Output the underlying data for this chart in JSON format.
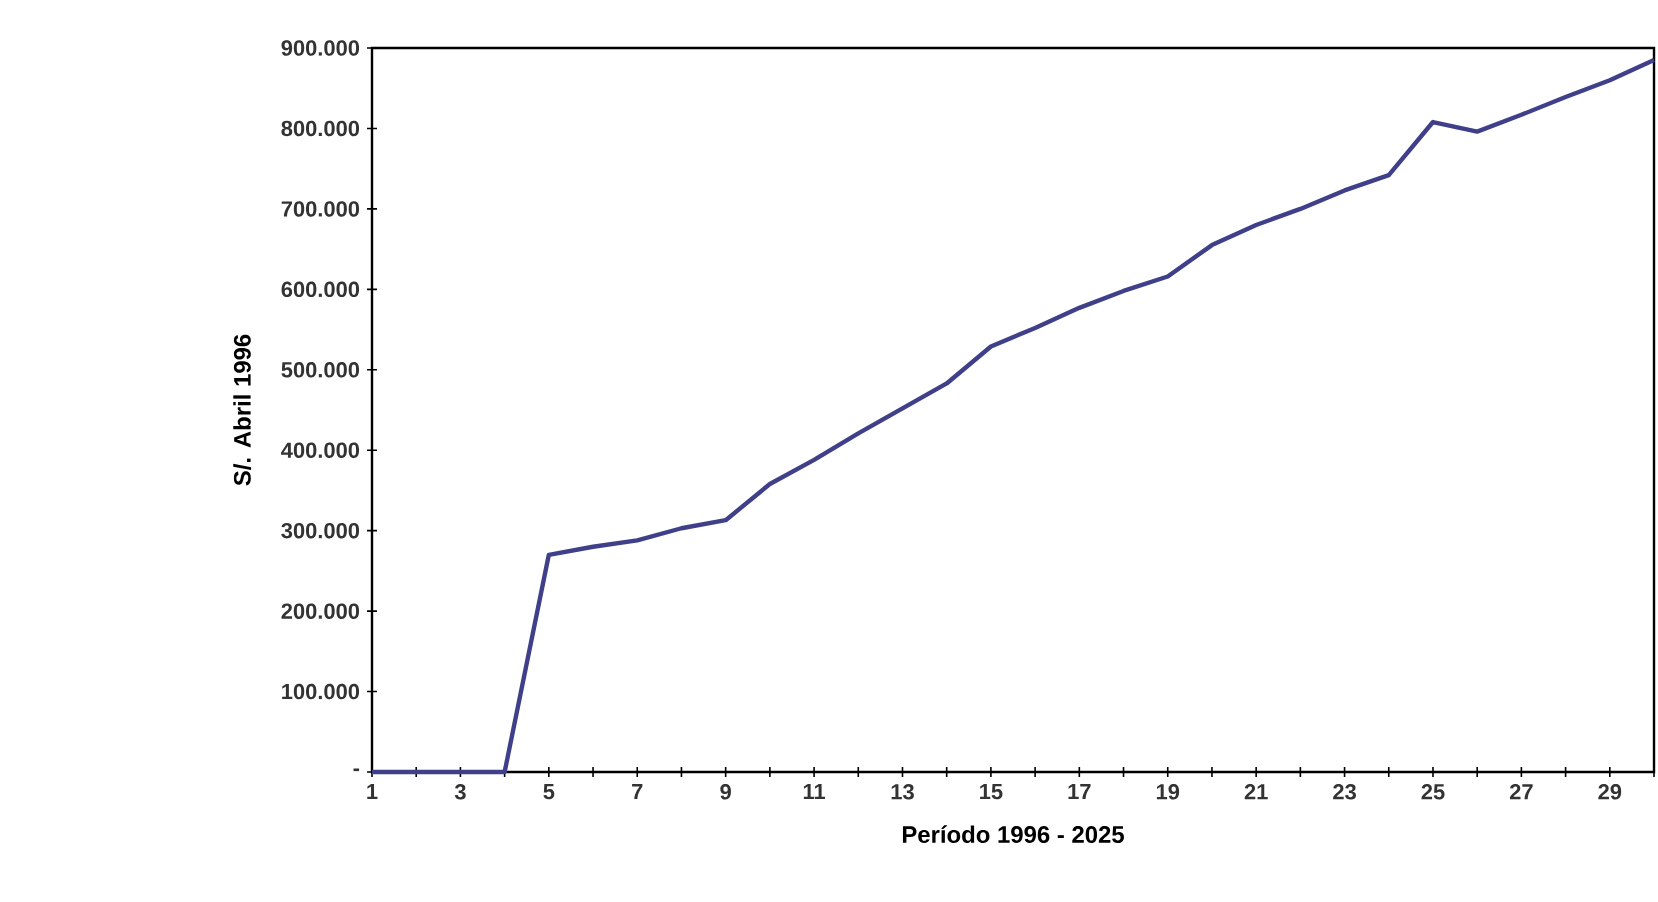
{
  "chart_data": {
    "type": "line",
    "xlabel": "Período 1996 - 2025",
    "ylabel": "S/. Abril 1996",
    "categories": [
      "1",
      null,
      "3",
      null,
      "5",
      null,
      "7",
      null,
      "9",
      null,
      "11",
      null,
      "13",
      null,
      "15",
      null,
      "17",
      null,
      "19",
      null,
      "21",
      null,
      "23",
      null,
      "25",
      null,
      "27",
      null,
      "29",
      null
    ],
    "series": [
      {
        "color": "#40408a",
        "values": [
          0,
          0,
          0,
          0,
          270000,
          280000,
          288000,
          303000,
          313000,
          358000,
          388000,
          421000,
          452000,
          483000,
          529000,
          552000,
          577000,
          598000,
          616000,
          655000,
          680000,
          700000,
          723000,
          742000,
          808000,
          796000,
          817000,
          839000,
          860000,
          885000
        ]
      }
    ],
    "ylim": [
      0,
      900000
    ],
    "yticks": [
      {
        "value": 0,
        "label": "-"
      },
      {
        "value": 100000,
        "label": "100.000"
      },
      {
        "value": 200000,
        "label": "200.000"
      },
      {
        "value": 300000,
        "label": "300.000"
      },
      {
        "value": 400000,
        "label": "400.000"
      },
      {
        "value": 500000,
        "label": "500.000"
      },
      {
        "value": 600000,
        "label": "600.000"
      },
      {
        "value": 700000,
        "label": "700.000"
      },
      {
        "value": 800000,
        "label": "800.000"
      },
      {
        "value": 900000,
        "label": "900.000"
      }
    ]
  }
}
